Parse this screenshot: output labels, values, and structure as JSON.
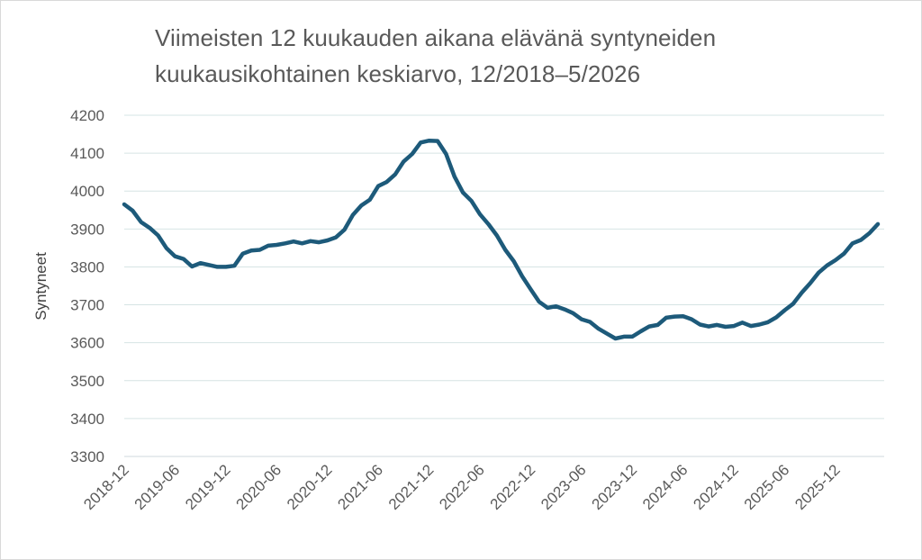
{
  "chart_data": {
    "type": "line",
    "title_line1": "Viimeisten 12 kuukauden aikana elävänä syntyneiden",
    "title_line2": "kuukausikohtainen keskiarvo, 12/2018–5/2026",
    "ylabel": "Syntyneet",
    "xlabel": "",
    "ylim": [
      3300,
      4200
    ],
    "yticks": [
      "4200",
      "4100",
      "4000",
      "3900",
      "3800",
      "3700",
      "3600",
      "3500",
      "3400",
      "3300"
    ],
    "xtick_labels": [
      "2018-12",
      "2019-06",
      "2019-12",
      "2020-06",
      "2020-12",
      "2021-06",
      "2021-12",
      "2022-06",
      "2022-12",
      "2023-06",
      "2023-12",
      "2024-06",
      "2024-12",
      "2025-06",
      "2025-12"
    ],
    "grid": true,
    "series_color": "#1d5a7a",
    "series": [
      {
        "values": [
          3965,
          3948,
          3918,
          3903,
          3883,
          3849,
          3828,
          3821,
          3801,
          3810,
          3805,
          3800,
          3800,
          3803,
          3835,
          3843,
          3845,
          3856,
          3858,
          3862,
          3867,
          3862,
          3868,
          3865,
          3870,
          3878,
          3898,
          3937,
          3962,
          3977,
          4013,
          4024,
          4044,
          4078,
          4098,
          4128,
          4133,
          4132,
          4098,
          4038,
          3996,
          3974,
          3939,
          3913,
          3883,
          3845,
          3815,
          3775,
          3741,
          3708,
          3692,
          3696,
          3688,
          3678,
          3662,
          3655,
          3637,
          3624,
          3611,
          3616,
          3616,
          3630,
          3643,
          3647,
          3666,
          3669,
          3670,
          3662,
          3648,
          3643,
          3647,
          3642,
          3644,
          3653,
          3644,
          3648,
          3654,
          3667,
          3686,
          3703,
          3732,
          3757,
          3785,
          3804,
          3818,
          3835,
          3862,
          3871,
          3889,
          3913
        ]
      }
    ]
  }
}
